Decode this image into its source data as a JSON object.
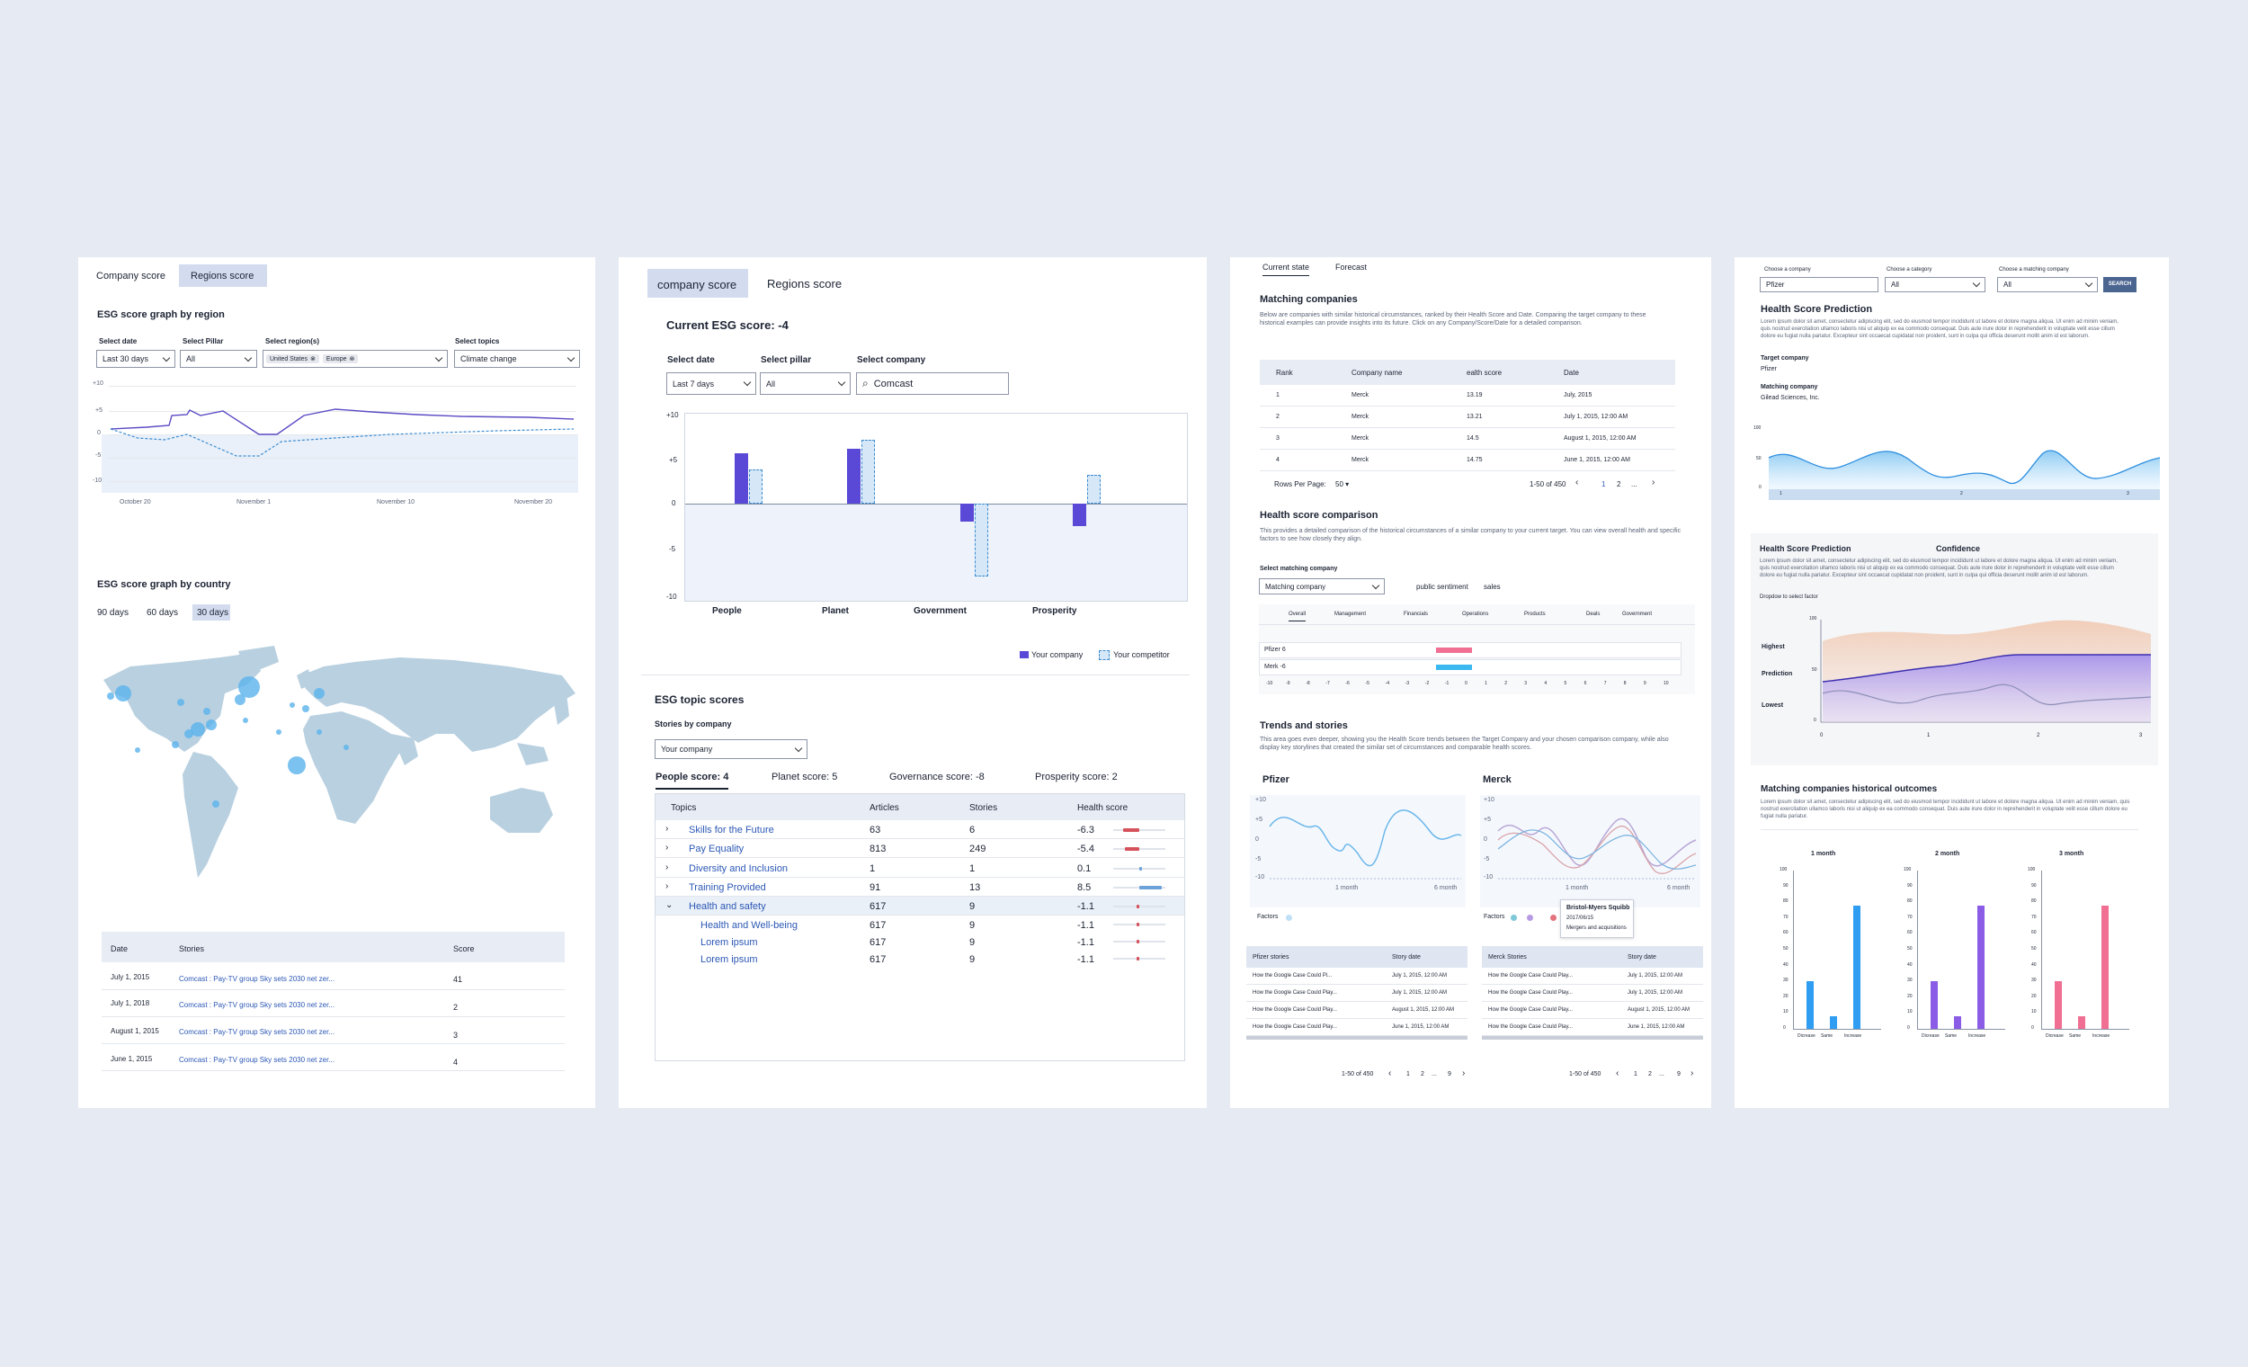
{
  "colors": {
    "bg": "#e6eaf3",
    "purple": "#5a49d6",
    "lightblue": "#d6e8f8",
    "blue": "#42a5f5",
    "pink": "#f06f92",
    "red": "#d5525c"
  },
  "p1": {
    "tabs": [
      "Company score",
      "Regions score"
    ],
    "region_title": "ESG score graph by region",
    "filters": {
      "date_label": "Select date",
      "date_value": "Last 30 days",
      "pillar_label": "Select Pillar",
      "pillar_value": "All",
      "region_label": "Select region(s)",
      "region_chips": [
        "United States",
        "Europe"
      ],
      "topics_label": "Select topics",
      "topics_value": "Climate change"
    },
    "chart": {
      "yticks": [
        "+10",
        "+5",
        "0",
        "-5",
        "-10"
      ],
      "xticks": [
        "October 20",
        "November 1",
        "November 10",
        "November 20"
      ]
    },
    "country_title": "ESG score graph by country",
    "range_tabs": [
      "90 days",
      "60 days",
      "30 days"
    ],
    "table": {
      "headers": [
        "Date",
        "Stories",
        "Score"
      ],
      "rows": [
        {
          "date": "July 1, 2015",
          "story": "Comcast : Pay-TV group Sky sets 2030 net zer...",
          "score": "41"
        },
        {
          "date": "July 1, 2018",
          "story": "Comcast : Pay-TV group Sky sets 2030 net zer...",
          "score": "2"
        },
        {
          "date": "August 1, 2015",
          "story": "Comcast : Pay-TV group Sky sets 2030 net zer...",
          "score": "3"
        },
        {
          "date": "June 1, 2015",
          "story": "Comcast : Pay-TV group Sky sets 2030 net zer...",
          "score": "4"
        }
      ]
    }
  },
  "p2": {
    "tabs": [
      "company score",
      "Regions score"
    ],
    "current": "Current ESG score: -4",
    "date_label": "Select date",
    "date_value": "Last 7 days",
    "pillar_label": "Select pillar",
    "pillar_value": "All",
    "company_label": "Select company",
    "company_value": "Comcast",
    "chart_data": {
      "type": "bar",
      "categories": [
        "People",
        "Planet",
        "Government",
        "Prosperity"
      ],
      "series": [
        {
          "name": "Your company",
          "values": [
            5.5,
            6,
            -2,
            -2.5
          ]
        },
        {
          "name": "Your competitor",
          "values": [
            3.8,
            7,
            -8,
            3.2
          ]
        }
      ],
      "ylim": [
        -10,
        10
      ],
      "yticks": [
        "+10",
        "+5",
        "0",
        "-5",
        "-10"
      ]
    },
    "topic_title": "ESG topic scores",
    "stories_label": "Stories by company",
    "stories_value": "Your company",
    "score_tabs": [
      "People  score: 4",
      "Planet score: 5",
      "Governance score: -8",
      "Prosperity score: 2"
    ],
    "table": {
      "headers": [
        "Topics",
        "Articles",
        "Stories",
        "Health score"
      ],
      "rows": [
        {
          "topic": "Skills for the Future",
          "articles": "63",
          "stories": "6",
          "score": "-6.3"
        },
        {
          "topic": "Pay Equality",
          "articles": "813",
          "stories": "249",
          "score": "-5.4"
        },
        {
          "topic": "Diversity and Inclusion",
          "articles": "1",
          "stories": "1",
          "score": "0.1"
        },
        {
          "topic": "Training Provided",
          "articles": "91",
          "stories": "13",
          "score": "8.5"
        },
        {
          "topic": "Health and safety",
          "articles": "617",
          "stories": "9",
          "score": "-1.1"
        },
        {
          "topic": "Health and Well-being",
          "articles": "617",
          "stories": "9",
          "score": "-1.1"
        },
        {
          "topic": "Lorem ipsum",
          "articles": "617",
          "stories": "9",
          "score": "-1.1"
        },
        {
          "topic": "Lorem ipsum",
          "articles": "617",
          "stories": "9",
          "score": "-1.1"
        }
      ]
    }
  },
  "p3": {
    "tabs": [
      "Current state",
      "Forecast"
    ],
    "matching_title": "Matching companies",
    "matching_desc": "Below are companies with similar historical circumstances, ranked by their Health Score and Date. Comparing the target company to these historical examples can provide insights into its future. Click on any Company/Score/Date for a detailed comparison.",
    "table": {
      "headers": [
        "Rank",
        "Company name",
        "ealth score",
        "Date"
      ],
      "rows": [
        {
          "rank": "1",
          "name": "Merck",
          "score": "13.19",
          "date": "July, 2015"
        },
        {
          "rank": "2",
          "name": "Merck",
          "score": "13.21",
          "date": "July 1, 2015, 12:00 AM"
        },
        {
          "rank": "3",
          "name": "Merck",
          "score": "14.5",
          "date": "August 1, 2015, 12:00 AM"
        },
        {
          "rank": "4",
          "name": "Merck",
          "score": "14.75",
          "date": "June 1, 2015, 12:00 AM"
        }
      ]
    },
    "rows_per_page": "Rows Per Page:",
    "rows_value": "50",
    "range": "1-50 of 450",
    "pages": [
      "1",
      "2",
      "...",
      "9"
    ],
    "comparison_title": "Health score comparison",
    "comparison_desc": "This provides a detailed comparison of the historical circumstances of a similar company to your current target. You can view overall health and specific factors to see how closely they align.",
    "select_label": "Select matching company",
    "select_value": "Matching company",
    "sentiment": "public sentiment",
    "sales": "sales",
    "factor_tabs": [
      "Overall",
      "Management",
      "Financials",
      "Operations",
      "Products",
      "Deals",
      "Government"
    ],
    "compare_rows": [
      {
        "label": "Pfizer 6",
        "value": 6
      },
      {
        "label": "Merk -6",
        "value": -6
      }
    ],
    "axis": [
      "-10",
      "-9",
      "-8",
      "-7",
      "-6",
      "-5",
      "-4",
      "-3",
      "-2",
      "-1",
      "0",
      "1",
      "2",
      "3",
      "4",
      "5",
      "6",
      "7",
      "8",
      "9",
      "10"
    ],
    "trends_title": "Trends and stories",
    "trends_desc": "This area goes even deeper, showing you the Health Score trends between the Target Company and your chosen comparison company, while also display key storylines that created the similar set of circumstances and comparable health scores.",
    "pfizer": "Pfizer",
    "merck": "Merck",
    "mini_yticks": [
      "+10",
      "+5",
      "0",
      "-5",
      "-10"
    ],
    "mini_xticks": [
      "1 month",
      "6 month"
    ],
    "factors": "Factors",
    "tooltip": {
      "title": "Bristol-Myers Squibb",
      "date": "2017/06/15",
      "note": "Mergers and acquisitions"
    },
    "pfizer_table": {
      "headers": [
        "Pfizer stories",
        "Story date"
      ],
      "rows": [
        {
          "s": "How the Google Case Could Pl...",
          "d": "July 1, 2015, 12:00 AM"
        },
        {
          "s": "How the Google Case Could Play...",
          "d": "July 1, 2015, 12:00 AM"
        },
        {
          "s": "How the Google Case Could Play...",
          "d": "August 1, 2015, 12:00 AM"
        },
        {
          "s": "How the Google Case Could Play...",
          "d": "June 1, 2015, 12:00 AM"
        }
      ]
    },
    "merck_table": {
      "headers": [
        "Merck Stories",
        "Story date"
      ],
      "rows": [
        {
          "s": "How the Google Case Could Play...",
          "d": "July 1, 2015, 12:00 AM"
        },
        {
          "s": "How the Google Case Could Play...",
          "d": "July 1, 2015, 12:00 AM"
        },
        {
          "s": "How the Google Case Could Play...",
          "d": "August 1, 2015, 12:00 AM"
        },
        {
          "s": "How the Google Case Could Play...",
          "d": "June 1, 2015, 12:00 AM"
        }
      ]
    },
    "pager_range": "1-50 of 450",
    "pager_pages": [
      "1",
      "2",
      "...",
      "9"
    ]
  },
  "p4": {
    "labels": {
      "company": "Choose a company",
      "category": "Choose a category",
      "match": "Choose a matching company"
    },
    "values": {
      "company": "Pfizer",
      "category": "All",
      "match": "All"
    },
    "search": "SEARCH",
    "hsp_title": "Health Score Prediction",
    "lorem": "Lorem ipsum dolor sit amet, consectetur adipiscing elit, sed do eiusmod tempor incididunt ut labore et dolore magna aliqua. Ut enim ad minim veniam, quis nostrud exercitation ullamco laboris nisi ut aliquip ex ea commodo consequat. Duis aute irure dolor in reprehenderit in voluptate velit esse cillum dolore eu fugiat nulla pariatur. Excepteur sint occaecat cupidatat non proident, sunt in culpa qui officia deserunt mollit anim id est laborum.",
    "target_label": "Target company",
    "target_value": "Pfizer",
    "matching_label": "Matching company",
    "matching_value": "Gilead Sciences, Inc.",
    "area_yticks": [
      "100",
      "50",
      "0"
    ],
    "area_xticks": [
      "1",
      "2",
      "3"
    ],
    "conf_title": "Health Score Prediction",
    "confidence": "Confidence",
    "conf_desc": "Lorem ipsum dolor sit amet, consectetur adipiscing elit, sed do eiusmod tempor incididunt ut labore et dolore magna aliqua. Ut enim ad minim veniam, quis nostrud exercitation ullamco laboris nisi ut aliquip ex ea commodo consequat. Duis aute irure dolor in reprehenderit in voluptate velit esse cillum dolore eu fugiat nulla pariatur. Excepteur sint occaecat cupidatat non proident, sunt in culpa qui officia deserunt mollit anim id est laborum.",
    "dropdown_hint": "Dropdow to select factor",
    "conf_ylabels": [
      "Highest",
      "Prediction",
      "Lowest"
    ],
    "conf_yticks": [
      "100",
      "50",
      "0"
    ],
    "conf_xticks": [
      "0",
      "1",
      "2",
      "3"
    ],
    "outcomes_title": "Matching companies historical outcomes",
    "outcomes_desc": "Lorem ipsum dolor sit amet, consectetur adipiscing elit, sed do eiusmod tempor incididunt ut labore et dolore magna aliqua. Ut enim ad minim veniam, quis nostrud exercitation ullamco laboris nisi ut aliquip ex ea commodo consequat. Duis aute irure dolor in reprehenderit in voluptate velit esse cillum dolore eu fugiat nulla pariatur.",
    "outcome_charts": [
      {
        "title": "1 month",
        "color": "#2e9df2",
        "values": [
          30,
          8,
          78
        ]
      },
      {
        "title": "2 month",
        "color": "#8b5de6",
        "values": [
          30,
          8,
          78
        ]
      },
      {
        "title": "3 month",
        "color": "#f06f92",
        "values": [
          30,
          8,
          78
        ]
      }
    ],
    "outcome_categories": [
      "Dicrease",
      "Same",
      "Increase"
    ],
    "outcome_yticks": [
      "100",
      "90",
      "80",
      "70",
      "60",
      "50",
      "40",
      "30",
      "20",
      "10",
      "0"
    ]
  }
}
